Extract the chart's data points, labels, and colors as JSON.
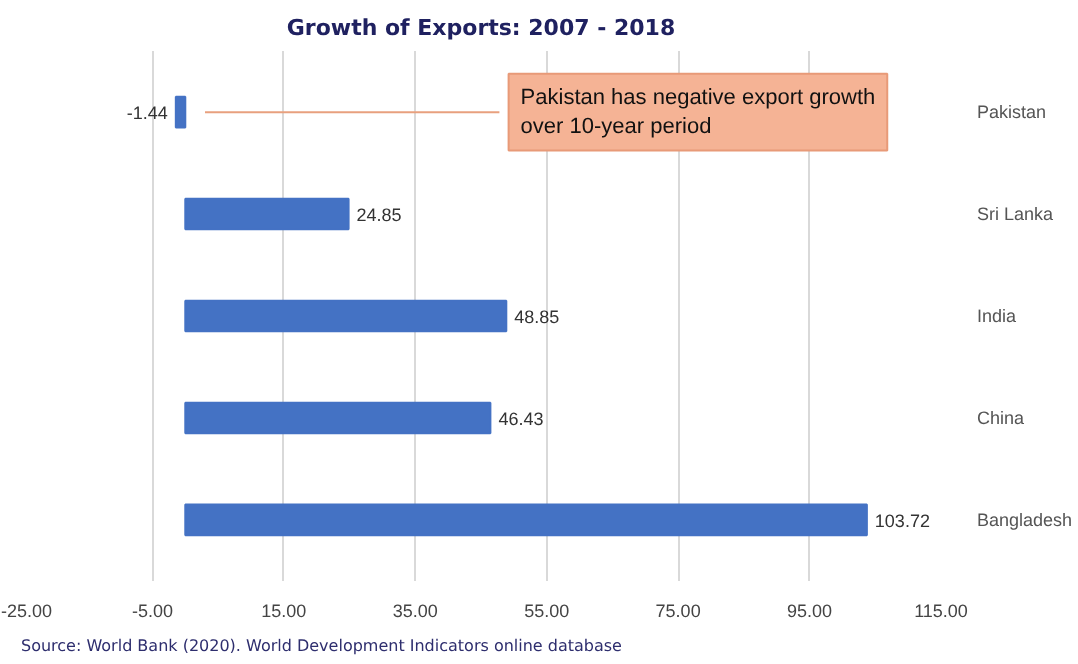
{
  "chart_data": {
    "type": "bar",
    "orientation": "horizontal",
    "title": "Growth of Exports: 2007 - 2018",
    "categories": [
      "Pakistan",
      "Sri Lanka",
      "India",
      "China",
      "Bangladesh"
    ],
    "values": [
      -1.44,
      24.85,
      48.85,
      46.43,
      103.72
    ],
    "color": "#4472c4",
    "xlim": [
      -25,
      115
    ],
    "xticks": [
      {
        "value": -25,
        "label": "-25.00"
      },
      {
        "value": -5,
        "label": "-5.00"
      },
      {
        "value": 15,
        "label": "15.00"
      },
      {
        "value": 35,
        "label": "35.00"
      },
      {
        "value": 55,
        "label": "55.00"
      },
      {
        "value": 75,
        "label": "75.00"
      },
      {
        "value": 95,
        "label": "95.00"
      },
      {
        "value": 115,
        "label": "115.00"
      }
    ],
    "grid": "x",
    "data_labels": true,
    "annotations": [
      "Pakistan has negative export growth\nover 10-year period",
      "Source: World Bank (2020). World Development Indicators online database"
    ]
  }
}
